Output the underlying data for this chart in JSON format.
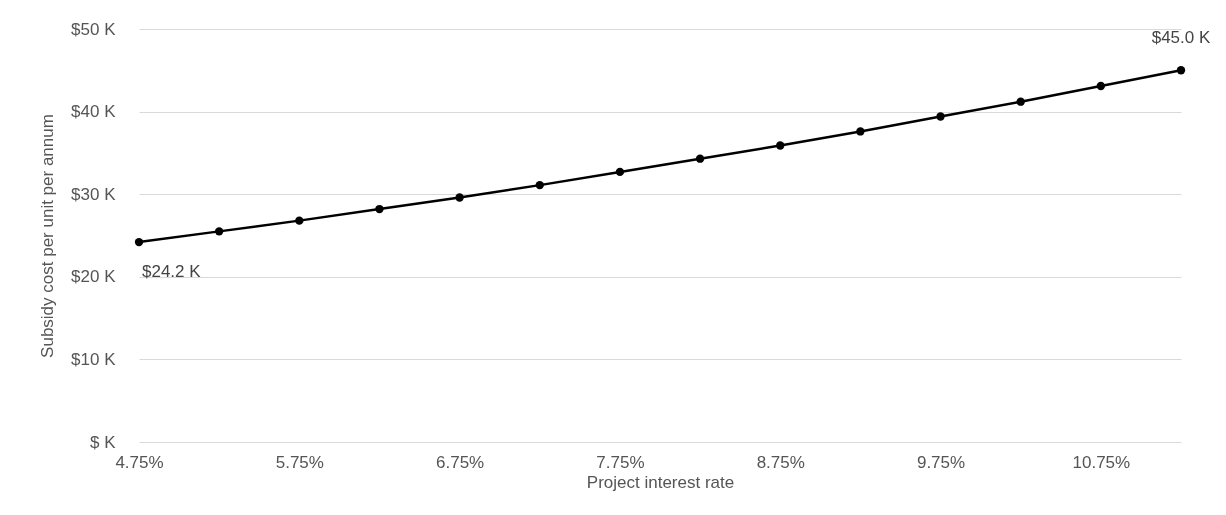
{
  "chart_data": {
    "type": "line",
    "xlabel": "Project interest rate",
    "ylabel": "Subsidy cost per unit per annum",
    "x": [
      4.75,
      5.25,
      5.75,
      6.25,
      6.75,
      7.25,
      7.75,
      8.25,
      8.75,
      9.25,
      9.75,
      10.25,
      10.75,
      11.25
    ],
    "series": [
      {
        "color": "#000000",
        "values": [
          24.2,
          25.5,
          26.8,
          28.2,
          29.6,
          31.1,
          32.7,
          34.3,
          35.9,
          37.6,
          39.4,
          41.2,
          43.1,
          45.0
        ],
        "value_labels": [
          "$24.2 K",
          null,
          null,
          null,
          null,
          null,
          null,
          null,
          null,
          null,
          null,
          null,
          null,
          "$45.0 K"
        ]
      }
    ],
    "xlim": [
      4.75,
      11.25
    ],
    "xticks": [
      {
        "value": 4.75,
        "label": "4.75%"
      },
      {
        "value": 5.75,
        "label": "5.75%"
      },
      {
        "value": 6.75,
        "label": "6.75%"
      },
      {
        "value": 7.75,
        "label": "7.75%"
      },
      {
        "value": 8.75,
        "label": "8.75%"
      },
      {
        "value": 9.75,
        "label": "9.75%"
      },
      {
        "value": 10.75,
        "label": "10.75%"
      }
    ],
    "ylim": [
      0,
      50
    ],
    "yticks": [
      {
        "value": 0,
        "label": "$ K"
      },
      {
        "value": 10,
        "label": "$10 K"
      },
      {
        "value": 20,
        "label": "$20 K"
      },
      {
        "value": 30,
        "label": "$30 K"
      },
      {
        "value": 40,
        "label": "$40 K"
      },
      {
        "value": 50,
        "label": "$50 K"
      }
    ],
    "grid": "y",
    "marker": "circle",
    "line_style": "solid"
  }
}
